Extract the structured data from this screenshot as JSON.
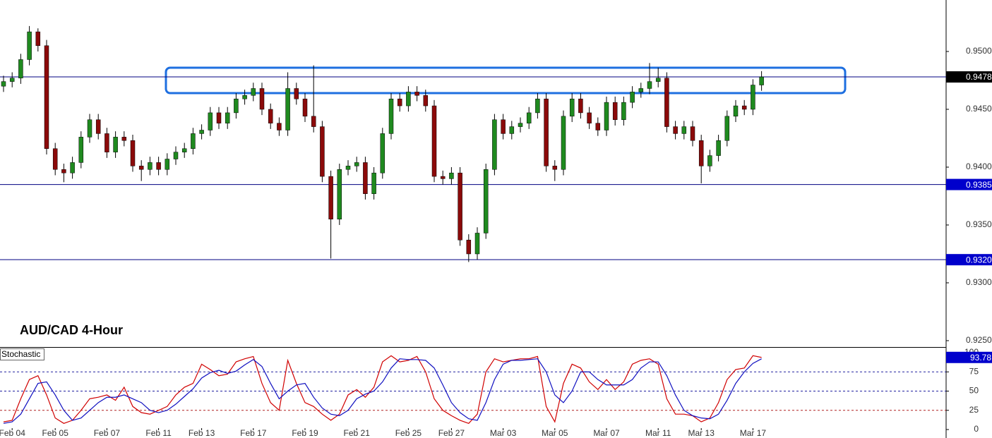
{
  "chart_data": [
    {
      "type": "candlestick",
      "title": "AUD/CAD 4-Hour",
      "categories": [
        null,
        "Feb 04",
        null,
        null,
        null,
        null,
        "Feb 05",
        null,
        null,
        null,
        null,
        null,
        "Feb 07",
        null,
        null,
        null,
        null,
        null,
        "Feb 11",
        null,
        null,
        null,
        null,
        "Feb 13",
        null,
        null,
        null,
        null,
        null,
        "Feb 17",
        null,
        null,
        null,
        null,
        null,
        "Feb 19",
        null,
        null,
        null,
        null,
        null,
        "Feb 21",
        null,
        null,
        null,
        null,
        null,
        "Feb 25",
        null,
        null,
        null,
        null,
        "Feb 27",
        null,
        null,
        null,
        null,
        null,
        "Mar 03",
        null,
        null,
        null,
        null,
        null,
        "Mar 05",
        null,
        null,
        null,
        null,
        null,
        "Mar 07",
        null,
        null,
        null,
        null,
        null,
        "Mar 11",
        null,
        null,
        null,
        null,
        "Mar 13",
        null,
        null,
        null,
        null,
        null,
        "Mar 17",
        null
      ],
      "open": [
        0.947,
        0.9474,
        0.9477,
        0.9493,
        0.9517,
        0.9505,
        0.9416,
        0.9398,
        0.9395,
        0.9404,
        0.9426,
        0.9441,
        0.9429,
        0.9413,
        0.9426,
        0.9423,
        0.9401,
        0.9398,
        0.9404,
        0.9398,
        0.9407,
        0.9413,
        0.9416,
        0.9429,
        0.9432,
        0.9447,
        0.9438,
        0.9447,
        0.9459,
        0.9462,
        0.9468,
        0.945,
        0.9438,
        0.9432,
        0.9468,
        0.9459,
        0.9444,
        0.9435,
        0.9392,
        0.9355,
        0.9398,
        0.9401,
        0.9404,
        0.9377,
        0.9395,
        0.9429,
        0.9459,
        0.9453,
        0.9465,
        0.9462,
        0.9453,
        0.9392,
        0.939,
        0.9395,
        0.9337,
        0.9325,
        0.9343,
        0.9398,
        0.9441,
        0.9429,
        0.9435,
        0.9438,
        0.9447,
        0.9459,
        0.9401,
        0.9398,
        0.9444,
        0.9459,
        0.9447,
        0.9438,
        0.9432,
        0.9456,
        0.9441,
        0.9456,
        0.9465,
        0.9468,
        0.9474,
        0.9477,
        0.9435,
        0.9429,
        0.9435,
        0.9423,
        0.9401,
        0.941,
        0.9423,
        0.9444,
        0.9453,
        0.945,
        0.9471
      ],
      "high": [
        0.9479,
        0.9482,
        0.9498,
        0.9522,
        0.952,
        0.951,
        0.9421,
        0.9403,
        0.9409,
        0.9431,
        0.9446,
        0.9446,
        0.9434,
        0.9431,
        0.9431,
        0.9428,
        0.9406,
        0.9409,
        0.9409,
        0.9412,
        0.9418,
        0.9421,
        0.9434,
        0.9437,
        0.9452,
        0.9452,
        0.9452,
        0.9464,
        0.9467,
        0.9473,
        0.9473,
        0.9455,
        0.9443,
        0.9482,
        0.9473,
        0.9464,
        0.9488,
        0.944,
        0.9397,
        0.9403,
        0.9406,
        0.9409,
        0.9409,
        0.94,
        0.9434,
        0.9464,
        0.9464,
        0.947,
        0.947,
        0.9467,
        0.9458,
        0.9397,
        0.94,
        0.94,
        0.9342,
        0.9348,
        0.9403,
        0.9446,
        0.9446,
        0.944,
        0.9443,
        0.9452,
        0.9464,
        0.9464,
        0.9406,
        0.9449,
        0.9464,
        0.9464,
        0.9452,
        0.9443,
        0.9461,
        0.9461,
        0.9461,
        0.947,
        0.9473,
        0.949,
        0.9486,
        0.9482,
        0.944,
        0.944,
        0.944,
        0.9428,
        0.9415,
        0.9428,
        0.9449,
        0.9458,
        0.9458,
        0.9476,
        0.9483
      ],
      "low": [
        0.9465,
        0.9469,
        0.9472,
        0.9488,
        0.95,
        0.9411,
        0.9393,
        0.9387,
        0.939,
        0.9399,
        0.9421,
        0.9424,
        0.9408,
        0.9408,
        0.9418,
        0.9396,
        0.9388,
        0.9393,
        0.9393,
        0.9393,
        0.9402,
        0.9408,
        0.9411,
        0.9424,
        0.9427,
        0.9433,
        0.9433,
        0.9442,
        0.9454,
        0.9457,
        0.9445,
        0.9433,
        0.9427,
        0.9427,
        0.9454,
        0.9439,
        0.943,
        0.9387,
        0.9321,
        0.935,
        0.9393,
        0.9396,
        0.9372,
        0.9372,
        0.939,
        0.9424,
        0.9448,
        0.9448,
        0.9457,
        0.9448,
        0.9387,
        0.9385,
        0.9385,
        0.9332,
        0.9318,
        0.932,
        0.9338,
        0.9393,
        0.9424,
        0.9424,
        0.943,
        0.9433,
        0.9442,
        0.9396,
        0.9388,
        0.9393,
        0.9439,
        0.9442,
        0.9433,
        0.9427,
        0.9427,
        0.9436,
        0.9436,
        0.9451,
        0.946,
        0.9463,
        0.9469,
        0.943,
        0.9424,
        0.9424,
        0.9418,
        0.9386,
        0.9396,
        0.9405,
        0.9418,
        0.9439,
        0.9445,
        0.9445,
        0.9466
      ],
      "close": [
        0.9474,
        0.9477,
        0.9493,
        0.9517,
        0.9505,
        0.9416,
        0.9398,
        0.9395,
        0.9404,
        0.9426,
        0.9441,
        0.9429,
        0.9413,
        0.9426,
        0.9423,
        0.9401,
        0.9398,
        0.9404,
        0.9398,
        0.9407,
        0.9413,
        0.9416,
        0.9429,
        0.9432,
        0.9447,
        0.9438,
        0.9447,
        0.9459,
        0.9462,
        0.9468,
        0.945,
        0.9438,
        0.9432,
        0.9468,
        0.9459,
        0.9444,
        0.9435,
        0.9392,
        0.9355,
        0.9398,
        0.9401,
        0.9404,
        0.9377,
        0.9395,
        0.9429,
        0.9459,
        0.9453,
        0.9465,
        0.9462,
        0.9453,
        0.9392,
        0.939,
        0.9395,
        0.9337,
        0.9325,
        0.9343,
        0.9398,
        0.9441,
        0.9429,
        0.9435,
        0.9438,
        0.9447,
        0.9459,
        0.9401,
        0.9398,
        0.9444,
        0.9459,
        0.9447,
        0.9438,
        0.9432,
        0.9456,
        0.9441,
        0.9456,
        0.9465,
        0.9468,
        0.9474,
        0.9477,
        0.9435,
        0.9429,
        0.9435,
        0.9423,
        0.9401,
        0.941,
        0.9423,
        0.9444,
        0.9453,
        0.945,
        0.9471,
        0.9478
      ],
      "up_color": "#1f8a1f",
      "down_color": "#8b0a0a",
      "ylim": [
        0.92445,
        0.95445
      ],
      "yticks": [
        {
          "value": 0.925,
          "label": "0.9250"
        },
        {
          "value": 0.93,
          "label": "0.9300"
        },
        {
          "value": 0.935,
          "label": "0.9350"
        },
        {
          "value": 0.94,
          "label": "0.9400"
        },
        {
          "value": 0.945,
          "label": "0.9450"
        },
        {
          "value": 0.95,
          "label": "0.9500"
        }
      ],
      "levels": [
        {
          "value": 0.9478,
          "label": "0.9478",
          "box_color": "#000000"
        },
        {
          "value": 0.9385,
          "label": "0.9385",
          "box_color": "#0000cc"
        },
        {
          "value": 0.932,
          "label": "0.9320",
          "box_color": "#0000cc"
        }
      ],
      "level_color": "#000080",
      "zone": [
        0.9464,
        0.9486
      ],
      "zone_color": "#1e6fe0"
    },
    {
      "type": "line",
      "label": "Stochastic",
      "series": [
        {
          "color": "#d00000",
          "values": [
            10,
            12,
            40,
            65,
            70,
            45,
            15,
            8,
            12,
            25,
            40,
            42,
            45,
            38,
            55,
            30,
            22,
            20,
            25,
            30,
            45,
            55,
            60,
            85,
            78,
            70,
            72,
            88,
            92,
            95,
            60,
            35,
            25,
            90,
            60,
            35,
            30,
            20,
            12,
            20,
            45,
            52,
            42,
            55,
            88,
            96,
            88,
            90,
            95,
            75,
            40,
            25,
            18,
            12,
            8,
            20,
            75,
            92,
            88,
            90,
            92,
            92,
            95,
            30,
            10,
            60,
            85,
            80,
            62,
            52,
            65,
            52,
            62,
            85,
            90,
            92,
            85,
            40,
            20,
            20,
            18,
            10,
            15,
            35,
            65,
            78,
            80,
            96,
            93.78
          ]
        },
        {
          "color": "#1010c0",
          "values": [
            8,
            10,
            20,
            40,
            60,
            62,
            45,
            25,
            12,
            15,
            25,
            35,
            42,
            42,
            45,
            40,
            35,
            25,
            22,
            25,
            33,
            43,
            53,
            67,
            74,
            77,
            73,
            76,
            84,
            91,
            82,
            60,
            40,
            50,
            58,
            60,
            42,
            28,
            20,
            18,
            25,
            40,
            46,
            50,
            62,
            80,
            92,
            91,
            91,
            90,
            80,
            58,
            35,
            22,
            14,
            12,
            35,
            65,
            85,
            90,
            90,
            91,
            92,
            75,
            45,
            35,
            50,
            75,
            75,
            65,
            58,
            58,
            58,
            65,
            80,
            88,
            88,
            70,
            45,
            25,
            18,
            15,
            14,
            20,
            38,
            60,
            75,
            86,
            92
          ]
        }
      ],
      "ylim": [
        -11,
        106.4
      ],
      "yticks": [
        0,
        25,
        50,
        75,
        100
      ],
      "levels": [
        {
          "value": 75,
          "color": "#2020a0"
        },
        {
          "value": 50,
          "color": "#2020a0"
        },
        {
          "value": 25,
          "color": "#b02020"
        }
      ],
      "value_box_color": "#0000cc"
    }
  ]
}
